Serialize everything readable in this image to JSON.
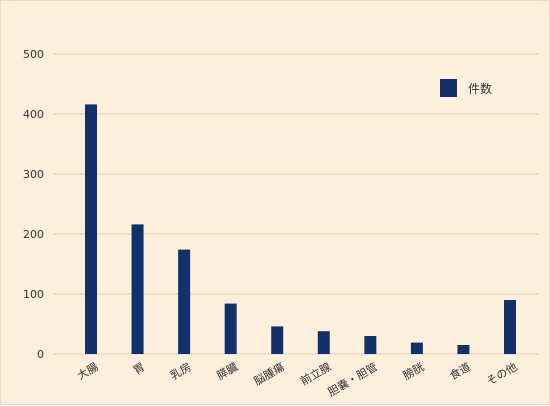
{
  "chart_data": {
    "type": "bar",
    "title": "",
    "xlabel": "",
    "ylabel": "",
    "categories": [
      "大腸",
      "胃",
      "乳房",
      "膵臓",
      "脳腫瘍",
      "前立腺",
      "胆嚢・胆管",
      "膀胱",
      "食道",
      "その他"
    ],
    "series": [
      {
        "name": "件数",
        "values": [
          416,
          216,
          174,
          84,
          46,
          38,
          30,
          19,
          15,
          90
        ]
      }
    ],
    "ylim": [
      0,
      500
    ],
    "yticks": [
      0,
      100,
      200,
      300,
      400,
      500
    ],
    "grid": true,
    "legend_position": "top-right",
    "colors": {
      "bar": "#12306a",
      "grid": "#e2cfb2",
      "background": "#fcefdc"
    }
  }
}
